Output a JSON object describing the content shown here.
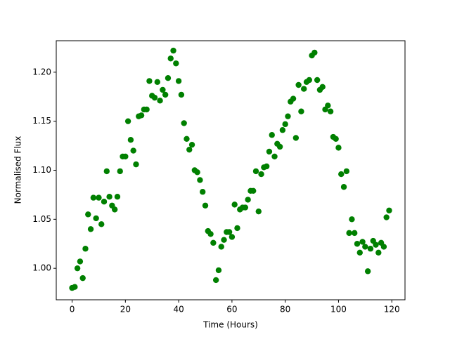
{
  "chart_data": {
    "type": "scatter",
    "xlabel": "Time (Hours)",
    "ylabel": "Normalised Flux",
    "color": "#008000",
    "x": [
      0,
      1,
      2,
      3,
      4,
      5,
      6,
      7,
      8,
      9,
      10,
      11,
      12,
      13,
      14,
      15,
      16,
      17,
      18,
      19,
      20,
      21,
      22,
      23,
      24,
      25,
      26,
      27,
      28,
      29,
      30,
      31,
      32,
      33,
      34,
      35,
      36,
      37,
      38,
      39,
      40,
      41,
      42,
      43,
      44,
      45,
      46,
      47,
      48,
      49,
      50,
      51,
      52,
      53,
      54,
      55,
      56,
      57,
      58,
      59,
      60,
      61,
      62,
      63,
      64,
      65,
      66,
      67,
      68,
      69,
      70,
      71,
      72,
      73,
      74,
      75,
      76,
      77,
      78,
      79,
      80,
      81,
      82,
      83,
      84,
      85,
      86,
      87,
      88,
      89,
      90,
      91,
      92,
      93,
      94,
      95,
      96,
      97,
      98,
      99,
      100,
      101,
      102,
      103,
      104,
      105,
      106,
      107,
      108,
      109,
      110,
      111,
      112,
      113,
      114,
      115,
      116,
      117,
      118,
      119
    ],
    "values": [
      0.98,
      0.981,
      1.0,
      1.007,
      0.99,
      1.02,
      1.055,
      1.04,
      1.072,
      1.051,
      1.072,
      1.045,
      1.068,
      1.099,
      1.073,
      1.064,
      1.06,
      1.073,
      1.099,
      1.114,
      1.114,
      1.15,
      1.131,
      1.12,
      1.106,
      1.155,
      1.156,
      1.162,
      1.162,
      1.191,
      1.176,
      1.174,
      1.19,
      1.171,
      1.182,
      1.177,
      1.194,
      1.214,
      1.222,
      1.209,
      1.191,
      1.177,
      1.148,
      1.132,
      1.121,
      1.126,
      1.1,
      1.098,
      1.09,
      1.078,
      1.064,
      1.038,
      1.035,
      1.026,
      0.988,
      0.998,
      1.022,
      1.029,
      1.037,
      1.037,
      1.032,
      1.065,
      1.041,
      1.06,
      1.062,
      1.062,
      1.07,
      1.079,
      1.079,
      1.099,
      1.058,
      1.096,
      1.103,
      1.104,
      1.119,
      1.136,
      1.114,
      1.127,
      1.124,
      1.141,
      1.147,
      1.155,
      1.17,
      1.173,
      1.133,
      1.187,
      1.16,
      1.183,
      1.19,
      1.192,
      1.217,
      1.22,
      1.192,
      1.182,
      1.185,
      1.162,
      1.166,
      1.16,
      1.134,
      1.132,
      1.123,
      1.096,
      1.083,
      1.099,
      1.036,
      1.05,
      1.036,
      1.025,
      1.016,
      1.027,
      1.022,
      0.997,
      1.02,
      1.028,
      1.024,
      1.016,
      1.026,
      1.022,
      1.052,
      1.059
    ],
    "xlim": [
      -5.95,
      124.95
    ],
    "xticks": [
      0,
      20,
      40,
      60,
      80,
      100,
      120
    ],
    "ylim": [
      0.9679,
      1.2321
    ],
    "yticks": [
      {
        "value": 1.0,
        "label": "1.00"
      },
      1.05,
      {
        "value": 1.1,
        "label": "1.10"
      },
      1.15,
      {
        "value": 1.2,
        "label": "1.20"
      }
    ]
  }
}
